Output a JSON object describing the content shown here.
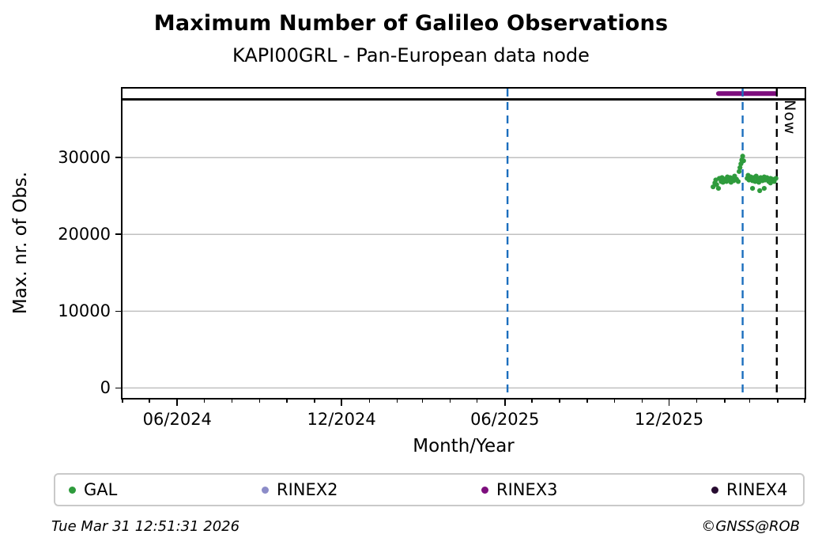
{
  "footer": {
    "timestamp": "Tue Mar 31 12:51:31 2026",
    "copyright": "©GNSS@ROB"
  },
  "chart_data": {
    "type": "scatter",
    "title": "Maximum Number of Galileo Observations",
    "subtitle": "KAPI00GRL - Pan-European data node",
    "xlabel": "Month/Year",
    "ylabel": "Max. nr. of Obs.",
    "xlim": [
      "2024-04-01",
      "2026-05-01"
    ],
    "ylim": [
      -1300,
      39000
    ],
    "grid": true,
    "grid_color": "#c0c0c0",
    "yticks": [
      {
        "value": 0,
        "label": "0"
      },
      {
        "value": 10000,
        "label": "10000"
      },
      {
        "value": 20000,
        "label": "20000"
      },
      {
        "value": 30000,
        "label": "30000"
      }
    ],
    "xticks": [
      {
        "date": "2024-06-01",
        "label": "06/2024"
      },
      {
        "date": "2024-12-01",
        "label": "12/2024"
      },
      {
        "date": "2025-06-01",
        "label": "06/2025"
      },
      {
        "date": "2025-12-01",
        "label": "12/2025"
      }
    ],
    "minor_xticks": "monthly",
    "reference_line": {
      "value": 37600,
      "color": "#000000",
      "width": 3
    },
    "rinex3_segment": {
      "name": "RINEX3",
      "value": 38350,
      "from": "2026-01-25",
      "to": "2026-03-29",
      "color": "#7d0e7d",
      "width": 6
    },
    "vlines": [
      {
        "date": "2025-06-04",
        "color": "#1b6ebe",
        "style": "dashed",
        "label": ""
      },
      {
        "date": "2026-02-21",
        "color": "#1b6ebe",
        "style": "dashed",
        "label": ""
      },
      {
        "date": "2026-03-31",
        "color": "#000000",
        "style": "dashed",
        "label": "Now"
      }
    ],
    "series": [
      {
        "name": "GAL",
        "color": "#2e9b3c",
        "marker": "circle",
        "points": [
          [
            "2026-01-19",
            26200
          ],
          [
            "2026-01-21",
            26700
          ],
          [
            "2026-01-22",
            27100
          ],
          [
            "2026-01-23",
            26500
          ],
          [
            "2026-01-25",
            26000
          ],
          [
            "2026-01-26",
            27300
          ],
          [
            "2026-01-28",
            26900
          ],
          [
            "2026-01-29",
            27400
          ],
          [
            "2026-01-30",
            26800
          ],
          [
            "2026-02-01",
            27200
          ],
          [
            "2026-02-03",
            26900
          ],
          [
            "2026-02-04",
            27500
          ],
          [
            "2026-02-05",
            27100
          ],
          [
            "2026-02-07",
            27400
          ],
          [
            "2026-02-08",
            26800
          ],
          [
            "2026-02-10",
            27300
          ],
          [
            "2026-02-11",
            27000
          ],
          [
            "2026-02-12",
            27600
          ],
          [
            "2026-02-14",
            27200
          ],
          [
            "2026-02-16",
            26900
          ],
          [
            "2026-02-17",
            28200
          ],
          [
            "2026-02-18",
            28700
          ],
          [
            "2026-02-19",
            29200
          ],
          [
            "2026-02-20",
            29700
          ],
          [
            "2026-02-21",
            30200
          ],
          [
            "2026-02-22",
            29600
          ],
          [
            "2026-02-26",
            27300
          ],
          [
            "2026-02-27",
            27700
          ],
          [
            "2026-02-28",
            27100
          ],
          [
            "2026-03-02",
            27500
          ],
          [
            "2026-03-04",
            27000
          ],
          [
            "2026-03-04",
            26000
          ],
          [
            "2026-03-05",
            27400
          ],
          [
            "2026-03-07",
            26900
          ],
          [
            "2026-03-08",
            27600
          ],
          [
            "2026-03-10",
            27200
          ],
          [
            "2026-03-11",
            26800
          ],
          [
            "2026-03-12",
            25700
          ],
          [
            "2026-03-13",
            27400
          ],
          [
            "2026-03-15",
            27000
          ],
          [
            "2026-03-17",
            26000
          ],
          [
            "2026-03-17",
            27500
          ],
          [
            "2026-03-18",
            27100
          ],
          [
            "2026-03-20",
            27400
          ],
          [
            "2026-03-22",
            26900
          ],
          [
            "2026-03-24",
            27300
          ],
          [
            "2026-03-24",
            26700
          ],
          [
            "2026-03-26",
            27200
          ],
          [
            "2026-03-28",
            26900
          ],
          [
            "2026-03-30",
            27300
          ]
        ]
      }
    ],
    "legend": {
      "position": "bottom",
      "items": [
        {
          "label": "GAL",
          "color": "#2e9b3c"
        },
        {
          "label": "RINEX2",
          "color": "#8c8cc8"
        },
        {
          "label": "RINEX3",
          "color": "#7d0e7d"
        },
        {
          "label": "RINEX4",
          "color": "#270b30"
        }
      ]
    }
  }
}
